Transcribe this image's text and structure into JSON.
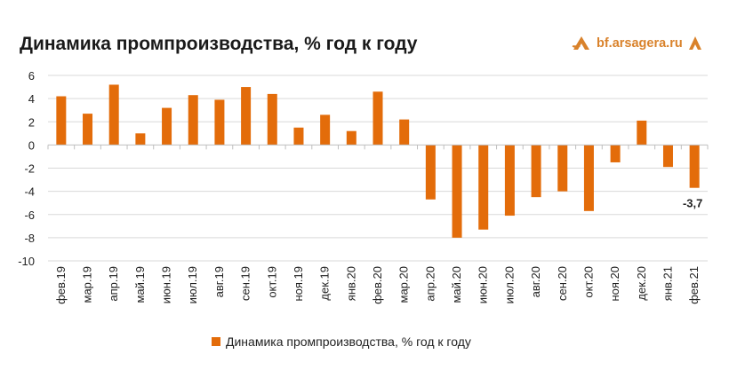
{
  "page": {
    "title": "Динамика промпроизводства, % год к году",
    "brand": "bf.arsagera.ru"
  },
  "colors": {
    "bar": "#e36c0a",
    "grid": "#d9d9d9",
    "brand": "#d9822b"
  },
  "chart_data": {
    "type": "bar",
    "title": "Динамика промпроизводства, % год к году",
    "categories": [
      "фев.19",
      "мар.19",
      "апр.19",
      "май.19",
      "июн.19",
      "июл.19",
      "авг.19",
      "сен.19",
      "окт.19",
      "ноя.19",
      "дек.19",
      "янв.20",
      "фев.20",
      "мар.20",
      "апр.20",
      "май.20",
      "июн.20",
      "июл.20",
      "авг.20",
      "сен.20",
      "окт.20",
      "ноя.20",
      "дек.20",
      "янв.21",
      "фев.21"
    ],
    "series": [
      {
        "name": "Динамика промпроизводства, % год к году",
        "values": [
          4.2,
          2.7,
          5.2,
          1.0,
          3.2,
          4.3,
          3.9,
          5.0,
          4.4,
          1.5,
          2.6,
          1.2,
          4.6,
          2.2,
          -4.7,
          -8.0,
          -7.3,
          -6.1,
          -4.5,
          -4.0,
          -5.7,
          -1.5,
          2.1,
          -1.9,
          -3.7
        ]
      }
    ],
    "ylim": [
      -10,
      6
    ],
    "yticks": [
      "6",
      "4",
      "2",
      "0",
      "-2",
      "-4",
      "-6",
      "-8",
      "-10"
    ],
    "yticks_values": [
      6,
      4,
      2,
      0,
      -2,
      -4,
      -6,
      -8,
      -10
    ],
    "annotation": {
      "category": "фев.21",
      "text": "-3,7"
    },
    "legend": "bottom",
    "grid": true
  }
}
